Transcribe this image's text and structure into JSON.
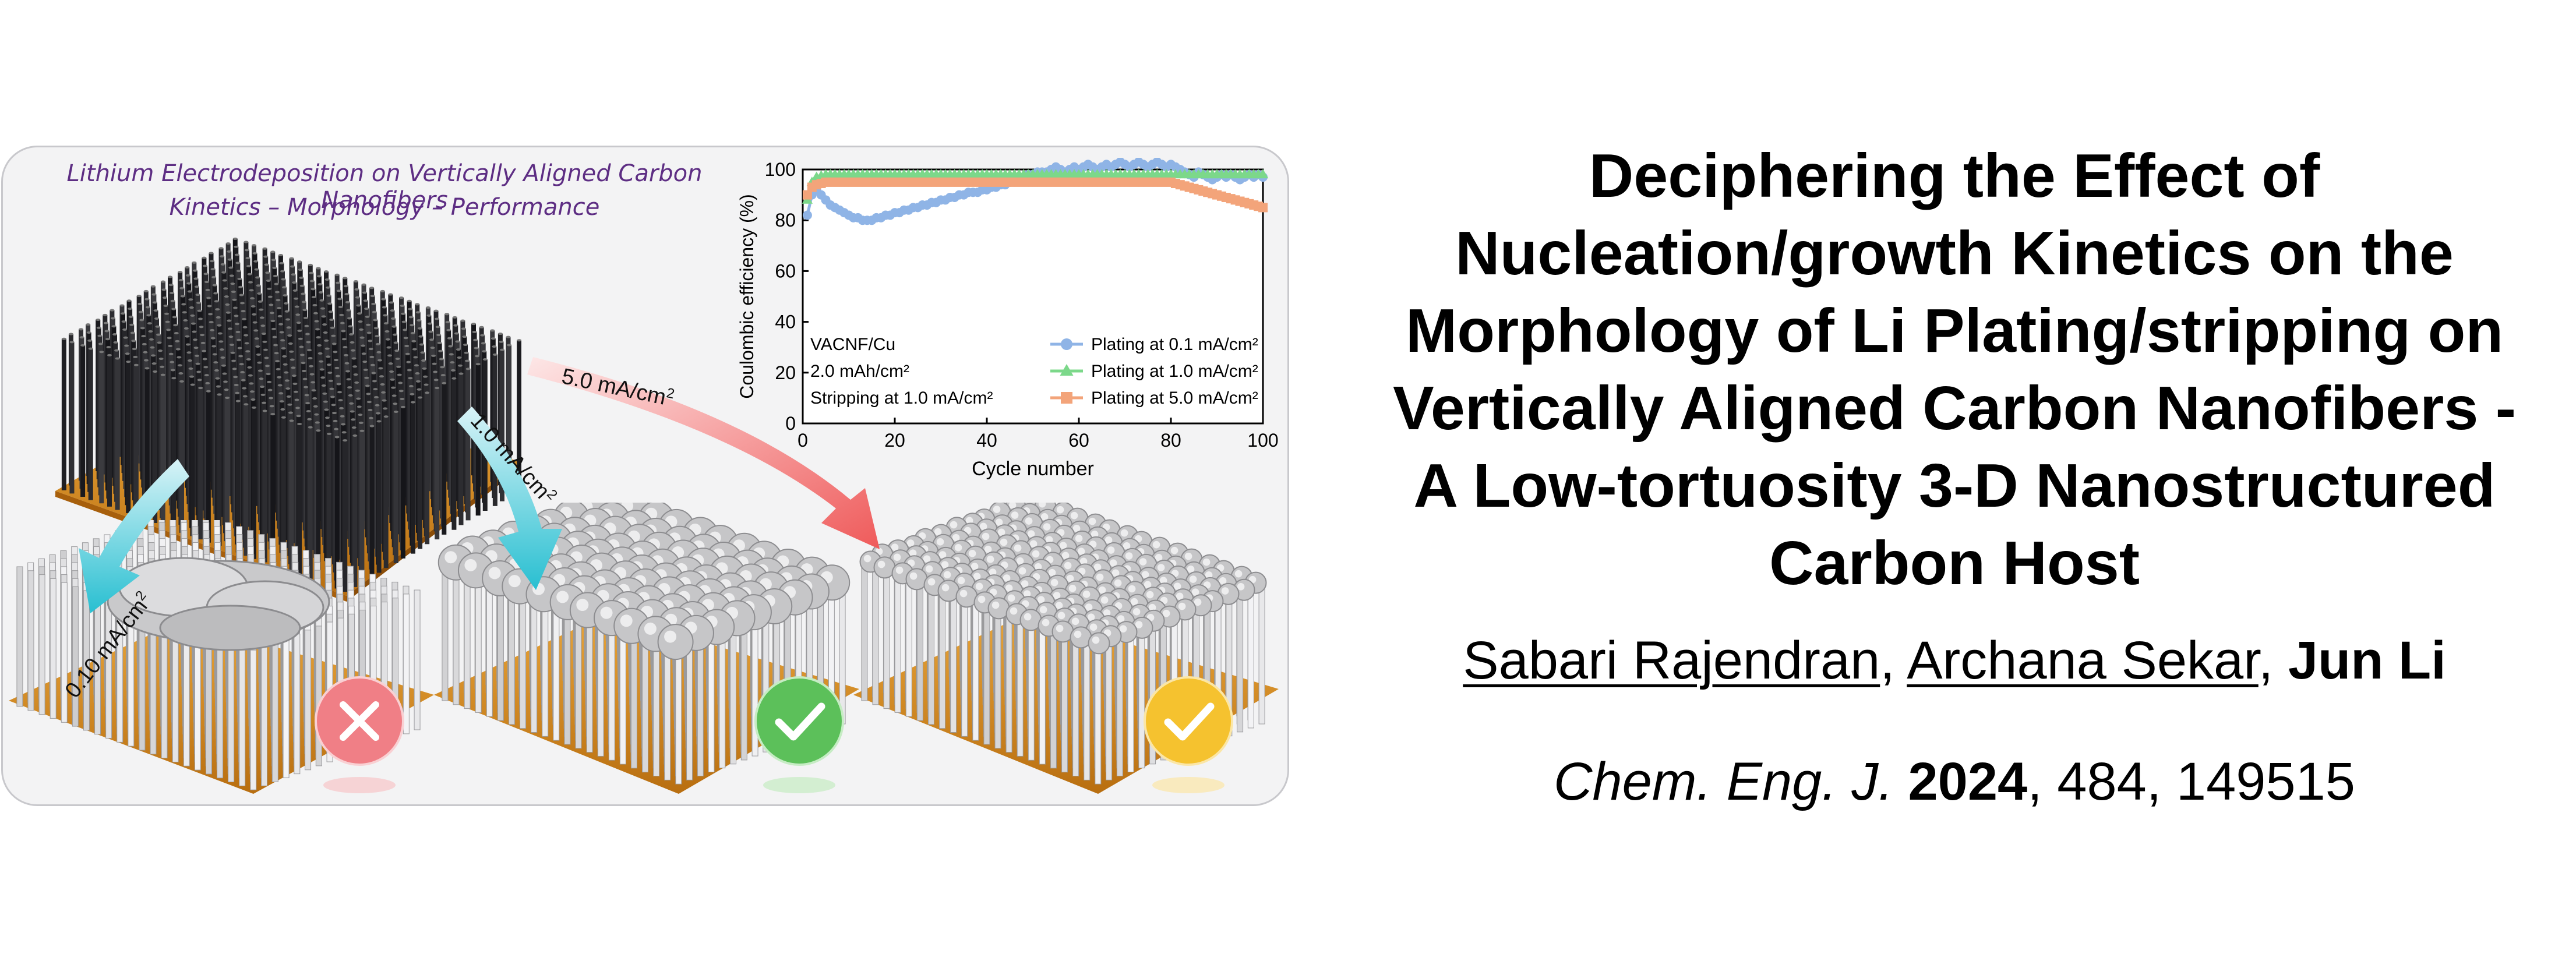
{
  "graphical_abstract": {
    "title_line1": "Lithium Electrodeposition on Vertically Aligned Carbon Nanofibers",
    "title_line2": "Kinetics – Morphology – Performance",
    "rate_labels": {
      "low": "0.10 mA/cm",
      "mid": "1.0 mA/cm",
      "high": "5.0 mA/cm",
      "sup": "2"
    },
    "outcome_icons": [
      "cross-icon",
      "check-icon",
      "check-icon"
    ],
    "outcome_colors": [
      "#f07f86",
      "#5cc05a",
      "#f5c22f"
    ]
  },
  "chart_data": {
    "type": "scatter",
    "xlabel": "Cycle number",
    "ylabel": "Coulombic efficiency (%)",
    "xlim": [
      0,
      100
    ],
    "ylim": [
      0,
      100
    ],
    "xticks": [
      0,
      20,
      40,
      60,
      80,
      100
    ],
    "yticks": [
      0,
      20,
      40,
      60,
      80,
      100
    ],
    "legend_position": "bottom-right",
    "annotation_lines": [
      "VACNF/Cu",
      "2.0 mAh/cm²",
      "Stripping at 1.0 mA/cm²"
    ],
    "series": [
      {
        "name": "Plating at 0.1 mA/cm²",
        "marker": "circle",
        "color": "#8fb4e6",
        "x": [
          1,
          2,
          3,
          4,
          5,
          6,
          7,
          8,
          9,
          10,
          11,
          12,
          13,
          14,
          15,
          16,
          17,
          18,
          19,
          20,
          21,
          22,
          23,
          24,
          25,
          26,
          27,
          28,
          29,
          30,
          31,
          32,
          33,
          34,
          35,
          36,
          37,
          38,
          39,
          40,
          41,
          42,
          43,
          44,
          45,
          46,
          47,
          48,
          49,
          50,
          51,
          52,
          53,
          54,
          55,
          56,
          57,
          58,
          59,
          60,
          61,
          62,
          63,
          64,
          65,
          66,
          67,
          68,
          69,
          70,
          71,
          72,
          73,
          74,
          75,
          76,
          77,
          78,
          79,
          80,
          81,
          82,
          83,
          84,
          85,
          86,
          87,
          88,
          89,
          90,
          91,
          92,
          93,
          94,
          95,
          96,
          97,
          98,
          99,
          100
        ],
        "y": [
          82,
          90,
          92,
          90,
          88,
          86,
          85,
          84,
          83,
          82,
          81,
          81,
          80,
          80,
          80,
          81,
          81,
          82,
          82,
          83,
          83,
          84,
          84,
          85,
          85,
          86,
          86,
          87,
          87,
          88,
          88,
          89,
          89,
          90,
          90,
          91,
          91,
          91,
          92,
          92,
          93,
          93,
          94,
          94,
          95,
          96,
          97,
          97,
          98,
          98,
          99,
          99,
          99,
          100,
          101,
          100,
          99,
          100,
          101,
          100,
          101,
          102,
          101,
          100,
          101,
          102,
          101,
          102,
          103,
          102,
          101,
          102,
          103,
          102,
          101,
          102,
          103,
          102,
          101,
          102,
          101,
          100,
          99,
          98,
          97,
          99,
          98,
          97,
          96,
          97,
          98,
          97,
          98,
          97,
          96,
          97,
          98,
          97,
          98,
          97
        ]
      },
      {
        "name": "Plating at 1.0 mA/cm²",
        "marker": "triangle",
        "color": "#7cd88a",
        "x": [
          1,
          2,
          3,
          4,
          5,
          6,
          7,
          8,
          9,
          10,
          11,
          12,
          13,
          14,
          15,
          16,
          17,
          18,
          19,
          20,
          21,
          22,
          23,
          24,
          25,
          26,
          27,
          28,
          29,
          30,
          31,
          32,
          33,
          34,
          35,
          36,
          37,
          38,
          39,
          40,
          41,
          42,
          43,
          44,
          45,
          46,
          47,
          48,
          49,
          50,
          51,
          52,
          53,
          54,
          55,
          56,
          57,
          58,
          59,
          60,
          61,
          62,
          63,
          64,
          65,
          66,
          67,
          68,
          69,
          70,
          71,
          72,
          73,
          74,
          75,
          76,
          77,
          78,
          79,
          80,
          81,
          82,
          83,
          84,
          85,
          86,
          87,
          88,
          89,
          90,
          91,
          92,
          93,
          94,
          95,
          96,
          97,
          98,
          99,
          100
        ],
        "y": [
          88,
          95,
          97,
          97.5,
          98,
          98,
          98,
          98,
          98,
          98,
          98,
          98,
          98,
          98,
          98,
          98,
          98,
          98,
          98,
          98,
          98,
          98,
          98,
          98,
          98,
          98,
          98,
          98,
          98,
          98,
          98,
          98,
          98,
          98,
          98,
          98,
          98,
          98,
          98,
          98,
          98,
          98,
          98,
          98,
          98,
          98,
          98,
          98,
          98,
          98,
          98,
          98,
          98,
          98,
          98,
          98,
          98,
          98,
          98,
          98,
          98,
          98,
          98,
          98,
          98,
          98,
          98,
          98,
          98,
          98,
          98,
          98,
          98,
          98,
          98,
          98,
          98,
          98,
          98,
          98,
          98,
          98,
          98,
          98,
          98,
          98,
          98,
          98,
          98,
          98,
          98,
          98,
          98,
          98,
          98,
          98,
          98,
          98,
          98,
          98
        ]
      },
      {
        "name": "Plating at 5.0 mA/cm²",
        "marker": "square",
        "color": "#f3a47a",
        "x": [
          1,
          2,
          3,
          4,
          5,
          6,
          7,
          8,
          9,
          10,
          11,
          12,
          13,
          14,
          15,
          16,
          17,
          18,
          19,
          20,
          21,
          22,
          23,
          24,
          25,
          26,
          27,
          28,
          29,
          30,
          31,
          32,
          33,
          34,
          35,
          36,
          37,
          38,
          39,
          40,
          41,
          42,
          43,
          44,
          45,
          46,
          47,
          48,
          49,
          50,
          51,
          52,
          53,
          54,
          55,
          56,
          57,
          58,
          59,
          60,
          61,
          62,
          63,
          64,
          65,
          66,
          67,
          68,
          69,
          70,
          71,
          72,
          73,
          74,
          75,
          76,
          77,
          78,
          79,
          80,
          81,
          82,
          83,
          84,
          85,
          86,
          87,
          88,
          89,
          90,
          91,
          92,
          93,
          94,
          95,
          96,
          97,
          98,
          99,
          100
        ],
        "y": [
          90,
          93,
          94,
          94.5,
          95,
          95,
          95,
          95,
          95,
          95,
          95,
          95,
          95,
          95,
          95,
          95,
          95,
          95,
          95,
          95,
          95,
          95,
          95,
          95,
          95,
          95,
          95,
          95,
          95,
          95,
          95,
          95,
          95,
          95,
          95,
          95,
          95,
          95,
          95,
          95,
          95,
          95,
          95,
          95,
          95,
          95,
          95,
          95,
          95,
          95,
          95,
          95,
          95,
          95,
          95,
          95,
          95,
          95,
          95,
          95,
          95,
          95,
          95,
          95,
          95,
          95,
          95,
          95,
          95,
          95,
          95,
          95,
          95,
          95,
          95,
          95,
          95,
          95,
          95,
          95,
          94.5,
          94,
          93.5,
          93,
          92.5,
          92,
          91.5,
          91,
          90.5,
          90,
          89.5,
          89,
          88.5,
          88,
          87.5,
          87,
          86.5,
          86,
          85.5,
          85
        ]
      }
    ]
  },
  "paper": {
    "title_lines": [
      "Deciphering the Effect of",
      "Nucleation/growth Kinetics on the",
      "Morphology of Li Plating/stripping on",
      "Vertically Aligned Carbon Nanofibers -",
      "A Low-tortuosity 3-D Nanostructured",
      "Carbon Host"
    ],
    "authors": {
      "author1": "Sabari Rajendran",
      "sep1": ", ",
      "author2": "Archana Sekar",
      "sep2": ", ",
      "author3": "Jun Li"
    },
    "citation": {
      "journal": "Chem. Eng. J.",
      "year": "2024",
      "rest": ", 484, 149515"
    }
  }
}
